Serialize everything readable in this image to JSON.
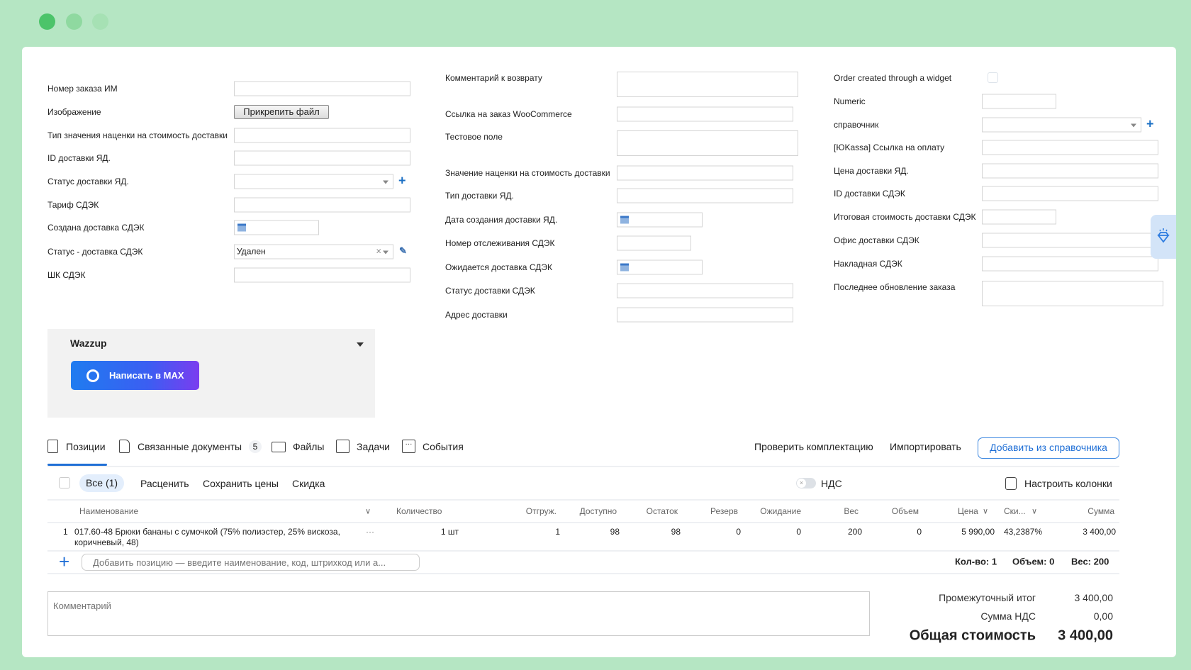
{
  "window": {
    "dots": [
      "#4cc46a",
      "#8fd9a0",
      "#a6e1b4"
    ]
  },
  "left_fields": [
    {
      "label": "Номер заказа ИМ",
      "type": "text",
      "value": ""
    },
    {
      "label": "Изображение",
      "type": "file",
      "button": "Прикрепить файл"
    },
    {
      "label": "Тип значения наценки на стоимость доставки",
      "type": "text",
      "value": ""
    },
    {
      "label": "ID доставки ЯД.",
      "type": "text",
      "value": ""
    },
    {
      "label": "Статус доставки ЯД.",
      "type": "select",
      "value": ""
    },
    {
      "label": "Тариф СДЭК",
      "type": "text",
      "value": ""
    },
    {
      "label": "Создана доставка СДЭК",
      "type": "date",
      "value": ""
    },
    {
      "label": "Статус - доставка СДЭК",
      "type": "select",
      "value": "Удален"
    },
    {
      "label": "ШК СДЭК",
      "type": "text",
      "value": ""
    }
  ],
  "middle_fields": [
    {
      "label": "Комментарий к возврату",
      "type": "textarea"
    },
    {
      "label": "Ссылка на заказ WooCommerce",
      "type": "text"
    },
    {
      "label": "Тестовое поле",
      "type": "textarea"
    },
    {
      "label": "Значение наценки на стоимость доставки",
      "type": "text"
    },
    {
      "label": "Тип доставки ЯД.",
      "type": "text"
    },
    {
      "label": "Дата создания доставки ЯД.",
      "type": "date"
    },
    {
      "label": "Номер отслеживания СДЭК",
      "type": "short"
    },
    {
      "label": "Ожидается доставка СДЭК",
      "type": "date"
    },
    {
      "label": "Статус доставки СДЭК",
      "type": "text"
    },
    {
      "label": "Адрес доставки",
      "type": "text"
    }
  ],
  "right_fields": [
    {
      "label": "Order created through a widget",
      "type": "checkbox",
      "checked": false
    },
    {
      "label": "Numeric",
      "type": "short"
    },
    {
      "label": "справочник",
      "type": "select"
    },
    {
      "label": "[ЮKassa] Ссылка на оплату",
      "type": "text"
    },
    {
      "label": "Цена доставки ЯД.",
      "type": "text"
    },
    {
      "label": "ID доставки СДЭК",
      "type": "text"
    },
    {
      "label": "Итоговая стоимость доставки СДЭК",
      "type": "short"
    },
    {
      "label": "Офис доставки СДЭК",
      "type": "text"
    },
    {
      "label": "Накладная СДЭК",
      "type": "text"
    },
    {
      "label": "Последнее обновление заказа",
      "type": "textarea"
    }
  ],
  "wazzup": {
    "title": "Wazzup",
    "button": "Написать в MAX"
  },
  "tabs": [
    {
      "label": "Позиции",
      "active": true
    },
    {
      "label": "Связанные документы",
      "badge": "5"
    },
    {
      "label": "Файлы"
    },
    {
      "label": "Задачи"
    },
    {
      "label": "События"
    }
  ],
  "actions": {
    "check": "Проверить комплектацию",
    "import": "Импортировать",
    "add_from_ref": "Добавить из справочника"
  },
  "toolbar": {
    "all": "Все (1)",
    "price": "Расценить",
    "save_prices": "Сохранить цены",
    "discount": "Скидка",
    "vat": "НДС",
    "vat_on": false,
    "columns": "Настроить колонки"
  },
  "table": {
    "headers": [
      "Наименование",
      "Количество",
      "Отгруж.",
      "Доступно",
      "Остаток",
      "Резерв",
      "Ожидание",
      "Вес",
      "Объем",
      "Цена",
      "Ски...",
      "Сумма"
    ],
    "rows": [
      {
        "num": "1",
        "name_line1": "017.60-48 Брюки бананы с сумочкой (75% полиэстер, 25% вискоза,",
        "name_line2": "коричневый, 48)",
        "qty": "1 шт",
        "shipped": "1",
        "available": "98",
        "stock": "98",
        "reserve": "0",
        "waiting": "0",
        "weight": "200",
        "volume": "0",
        "price": "5 990,00",
        "discount": "43,2387%",
        "sum": "3 400,00"
      }
    ],
    "add_placeholder": "Добавить позицию — введите наименование, код, штрихкод или а...",
    "summary": {
      "qty": "Кол-во: 1",
      "volume": "Объем: 0",
      "weight": "Вес: 200"
    }
  },
  "comment": {
    "placeholder": "Комментарий"
  },
  "totals": {
    "subtotal_label": "Промежуточный итог",
    "subtotal": "3 400,00",
    "vat_label": "Сумма НДС",
    "vat": "0,00",
    "total_label": "Общая стоимость",
    "total": "3 400,00"
  }
}
